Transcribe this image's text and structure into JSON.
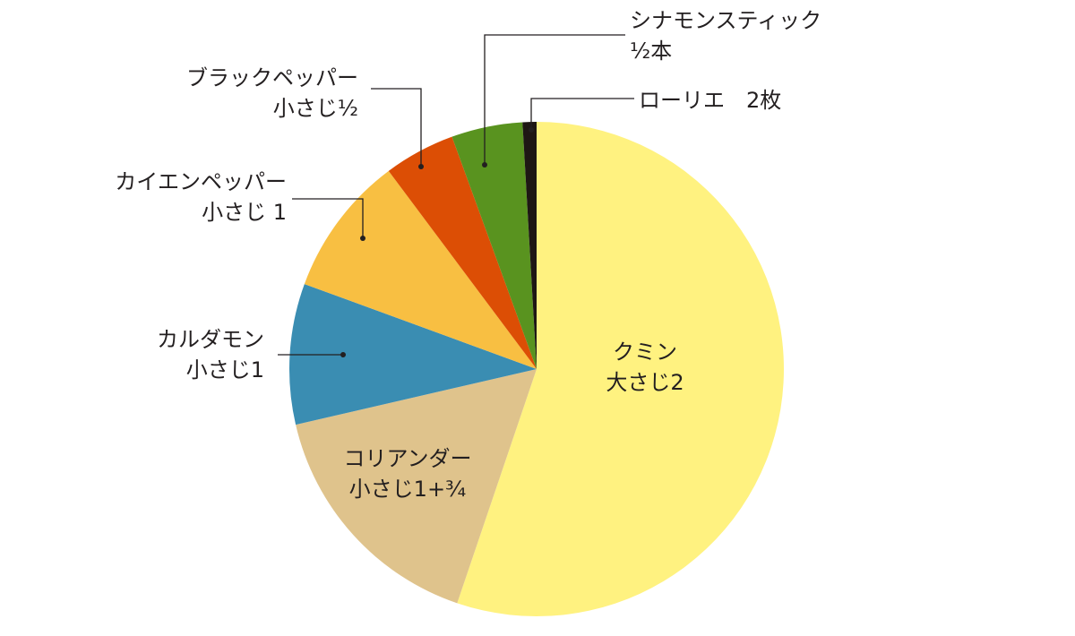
{
  "chart_data": {
    "type": "pie",
    "start_angle_deg": 0,
    "direction": "clockwise",
    "colors": [
      "#fff280",
      "#dfc38c",
      "#3a8db2",
      "#f8bf42",
      "#dc4e05",
      "#59931f",
      "#1e1714"
    ],
    "slices": [
      {
        "name": "クミン",
        "amount": "大さじ2",
        "value": 54.6
      },
      {
        "name": "コリアンダー",
        "amount": "小さじ1+¾",
        "value": 16.0
      },
      {
        "name": "カルダモン",
        "amount": "小さじ1",
        "value": 9.1
      },
      {
        "name": "カイエンペッパー",
        "amount": "小さじ 1",
        "value": 9.1
      },
      {
        "name": "ブラックペッパー",
        "amount": "小さじ½",
        "value": 4.6
      },
      {
        "name": "シナモンスティック",
        "amount": "½本",
        "value": 4.6
      },
      {
        "name": "ローリエ　2枚",
        "amount": "",
        "value": 0.9
      }
    ]
  }
}
